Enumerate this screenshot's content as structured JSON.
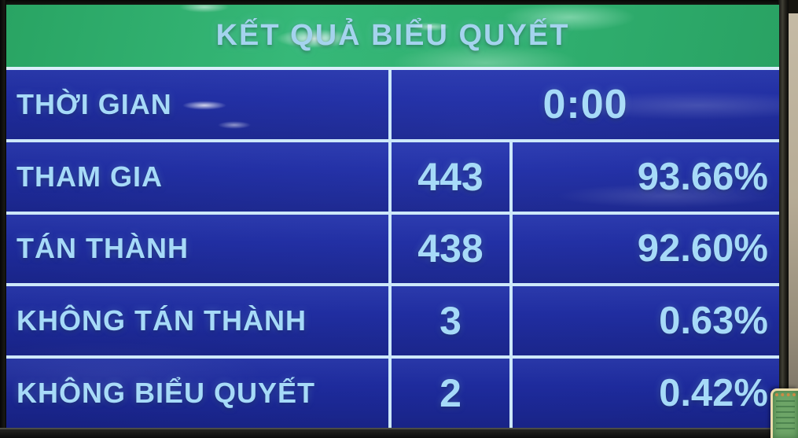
{
  "board": {
    "title": "KẾT QUẢ BIỂU QUYẾT",
    "rows": [
      {
        "label": "THỜI GIAN",
        "value": "0:00"
      },
      {
        "label": "THAM GIA",
        "count": "443",
        "percent": "93.66%"
      },
      {
        "label": "TÁN THÀNH",
        "count": "438",
        "percent": "92.60%"
      },
      {
        "label": "KHÔNG TÁN THÀNH",
        "count": "3",
        "percent": "0.63%"
      },
      {
        "label": "KHÔNG BIỂU QUYẾT",
        "count": "2",
        "percent": "0.42%"
      }
    ]
  },
  "chart_data": {
    "type": "table",
    "title": "KẾT QUẢ BIỂU QUYẾT",
    "columns": [
      "label",
      "count",
      "percent"
    ],
    "rows": [
      {
        "label": "THỜI GIAN",
        "count": "0:00",
        "percent": null
      },
      {
        "label": "THAM GIA",
        "count": 443,
        "percent": 93.66
      },
      {
        "label": "TÁN THÀNH",
        "count": 438,
        "percent": 92.6
      },
      {
        "label": "KHÔNG TÁN THÀNH",
        "count": 3,
        "percent": 0.63
      },
      {
        "label": "KHÔNG BIỂU QUYẾT",
        "count": 2,
        "percent": 0.42
      }
    ]
  },
  "colors": {
    "header_green": "#2fae6e",
    "table_blue": "#1d2a9b",
    "text_light_blue": "#a6daf8",
    "grid_line": "#cde8fa"
  }
}
